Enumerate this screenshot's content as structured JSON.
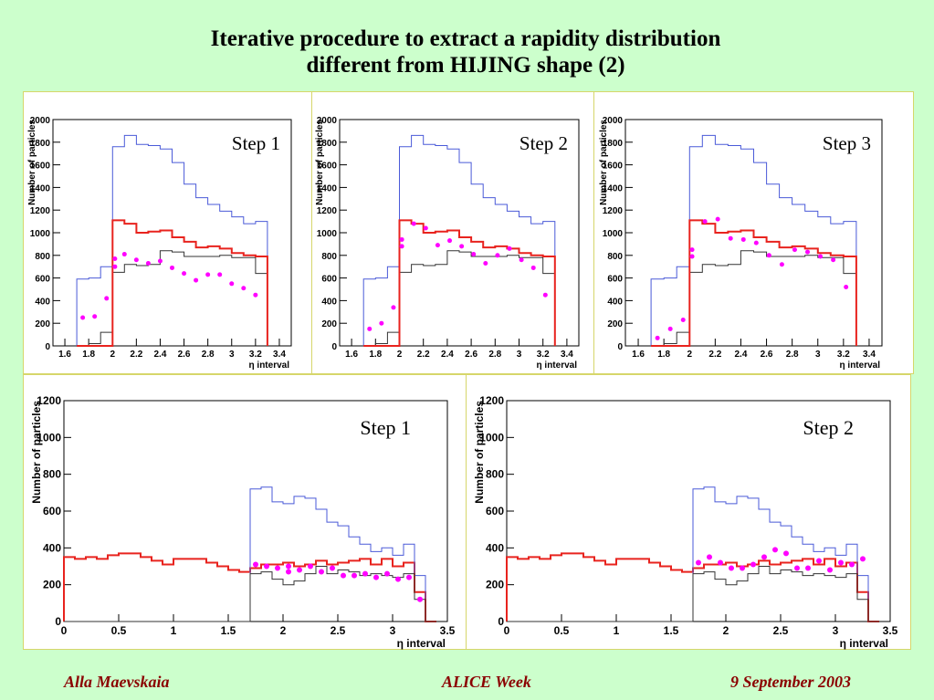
{
  "title_line1": "Iterative procedure to extract a rapidity distribution",
  "title_line2": "different from HIJING shape (2)",
  "footer": {
    "author": "Alla Maevskaia",
    "event": "ALICE Week",
    "date": "9 September 2003"
  },
  "colors": {
    "background": "#ccffcc",
    "blue": "#4a5ad8",
    "red": "#e8231e",
    "black": "#333333",
    "magenta": "#ff00ff",
    "footer": "#8b0000"
  },
  "chart_data": [
    {
      "type": "line",
      "label": "Step 1",
      "xlabel": "η interval",
      "ylabel": "Number of particles",
      "xlim": [
        1.5,
        3.5
      ],
      "ylim": [
        0,
        2000
      ],
      "xticks": [
        "1.6",
        "1.8",
        "2",
        "2.2",
        "2.4",
        "2.6",
        "2.8",
        "3",
        "3.2",
        "3.4"
      ],
      "yticks": [
        "0",
        "200",
        "400",
        "600",
        "800",
        "1000",
        "1200",
        "1400",
        "1600",
        "1800",
        "2000"
      ],
      "bin_edges": [
        1.7,
        1.8,
        1.9,
        2.0,
        2.1,
        2.2,
        2.3,
        2.4,
        2.5,
        2.6,
        2.7,
        2.8,
        2.9,
        3.0,
        3.1,
        3.2,
        3.3
      ],
      "series": [
        {
          "color": "blue",
          "values": [
            590,
            600,
            700,
            1760,
            1860,
            1780,
            1770,
            1740,
            1620,
            1430,
            1310,
            1250,
            1190,
            1140,
            1080,
            1100
          ]
        },
        {
          "color": "black",
          "values": [
            0,
            20,
            120,
            650,
            720,
            710,
            720,
            840,
            830,
            790,
            790,
            790,
            800,
            780,
            780,
            640
          ]
        },
        {
          "color": "red",
          "values": [
            0,
            0,
            0,
            1110,
            1080,
            1000,
            1010,
            1020,
            960,
            920,
            870,
            880,
            860,
            820,
            800,
            790
          ]
        }
      ],
      "points": {
        "x": [
          1.75,
          1.85,
          1.95,
          2.02,
          2.02,
          2.1,
          2.2,
          2.3,
          2.4,
          2.5,
          2.6,
          2.7,
          2.8,
          2.9,
          3.0,
          3.1,
          3.2
        ],
        "y": [
          250,
          260,
          420,
          770,
          700,
          810,
          760,
          730,
          750,
          690,
          640,
          580,
          630,
          630,
          550,
          510,
          450
        ]
      }
    },
    {
      "type": "line",
      "label": "Step 2",
      "xlabel": "η interval",
      "ylabel": "Number of particles",
      "xlim": [
        1.5,
        3.5
      ],
      "ylim": [
        0,
        2000
      ],
      "xticks": [
        "1.6",
        "1.8",
        "2",
        "2.2",
        "2.4",
        "2.6",
        "2.8",
        "3",
        "3.2",
        "3.4"
      ],
      "yticks": [
        "0",
        "200",
        "400",
        "600",
        "800",
        "1000",
        "1200",
        "1400",
        "1600",
        "1800",
        "2000"
      ],
      "bin_edges": [
        1.7,
        1.8,
        1.9,
        2.0,
        2.1,
        2.2,
        2.3,
        2.4,
        2.5,
        2.6,
        2.7,
        2.8,
        2.9,
        3.0,
        3.1,
        3.2,
        3.3
      ],
      "series": [
        {
          "color": "blue",
          "values": [
            590,
            600,
            700,
            1760,
            1860,
            1780,
            1770,
            1740,
            1620,
            1430,
            1310,
            1250,
            1190,
            1140,
            1080,
            1100
          ]
        },
        {
          "color": "black",
          "values": [
            0,
            20,
            120,
            650,
            720,
            710,
            720,
            840,
            830,
            790,
            790,
            790,
            800,
            780,
            780,
            640
          ]
        },
        {
          "color": "red",
          "values": [
            0,
            0,
            0,
            1110,
            1080,
            1000,
            1010,
            1020,
            960,
            920,
            870,
            880,
            860,
            820,
            800,
            790
          ]
        }
      ],
      "points": {
        "x": [
          1.75,
          1.85,
          1.95,
          2.02,
          2.02,
          2.12,
          2.22,
          2.32,
          2.42,
          2.52,
          2.62,
          2.72,
          2.82,
          2.92,
          3.02,
          3.12,
          3.22
        ],
        "y": [
          150,
          200,
          340,
          940,
          880,
          1080,
          1040,
          890,
          930,
          880,
          810,
          730,
          800,
          860,
          760,
          690,
          450
        ]
      }
    },
    {
      "type": "line",
      "label": "Step 3",
      "xlabel": "η interval",
      "ylabel": "Number of particles",
      "xlim": [
        1.5,
        3.5
      ],
      "ylim": [
        0,
        2000
      ],
      "xticks": [
        "1.6",
        "1.8",
        "2",
        "2.2",
        "2.4",
        "2.6",
        "2.8",
        "3",
        "3.2",
        "3.4"
      ],
      "yticks": [
        "0",
        "200",
        "400",
        "600",
        "800",
        "1000",
        "1200",
        "1400",
        "1600",
        "1800",
        "2000"
      ],
      "bin_edges": [
        1.7,
        1.8,
        1.9,
        2.0,
        2.1,
        2.2,
        2.3,
        2.4,
        2.5,
        2.6,
        2.7,
        2.8,
        2.9,
        3.0,
        3.1,
        3.2,
        3.3
      ],
      "series": [
        {
          "color": "blue",
          "values": [
            590,
            600,
            700,
            1760,
            1860,
            1780,
            1770,
            1740,
            1620,
            1430,
            1310,
            1250,
            1190,
            1140,
            1080,
            1100
          ]
        },
        {
          "color": "black",
          "values": [
            0,
            20,
            120,
            650,
            720,
            710,
            720,
            840,
            830,
            790,
            790,
            790,
            800,
            780,
            780,
            640
          ]
        },
        {
          "color": "red",
          "values": [
            0,
            0,
            0,
            1110,
            1080,
            1000,
            1010,
            1020,
            960,
            920,
            870,
            880,
            860,
            820,
            800,
            790
          ]
        }
      ],
      "points": {
        "x": [
          1.75,
          1.85,
          1.95,
          2.02,
          2.02,
          2.12,
          2.22,
          2.32,
          2.42,
          2.52,
          2.62,
          2.72,
          2.82,
          2.92,
          3.02,
          3.12,
          3.22
        ],
        "y": [
          70,
          150,
          230,
          850,
          790,
          1100,
          1120,
          950,
          940,
          910,
          800,
          720,
          850,
          830,
          790,
          760,
          520
        ]
      }
    },
    {
      "type": "line",
      "label": "Step 1",
      "xlabel": "η interval",
      "ylabel": "Number of particles",
      "xlim": [
        0,
        3.5
      ],
      "ylim": [
        0,
        1200
      ],
      "xticks": [
        "0",
        "0.5",
        "1",
        "1.5",
        "2",
        "2.5",
        "3",
        "3.5"
      ],
      "yticks": [
        "0",
        "200",
        "400",
        "600",
        "800",
        "1000",
        "1200"
      ],
      "bin_edges": [
        0,
        0.1,
        0.2,
        0.3,
        0.4,
        0.5,
        0.6,
        0.7,
        0.8,
        0.9,
        1.0,
        1.1,
        1.2,
        1.3,
        1.4,
        1.5,
        1.6,
        1.7,
        1.8,
        1.9,
        2.0,
        2.1,
        2.2,
        2.3,
        2.4,
        2.5,
        2.6,
        2.7,
        2.8,
        2.9,
        3.0,
        3.1,
        3.2,
        3.3,
        3.4
      ],
      "series": [
        {
          "color": "red",
          "values": [
            350,
            340,
            350,
            340,
            360,
            370,
            370,
            350,
            330,
            310,
            340,
            340,
            340,
            320,
            300,
            280,
            270,
            290,
            310,
            310,
            320,
            300,
            310,
            330,
            310,
            320,
            330,
            340,
            310,
            340,
            300,
            320,
            160,
            0
          ]
        },
        {
          "color": "blue",
          "values": [
            0,
            0,
            0,
            0,
            0,
            0,
            0,
            0,
            0,
            0,
            0,
            0,
            0,
            0,
            0,
            0,
            0,
            720,
            730,
            650,
            640,
            680,
            670,
            610,
            540,
            520,
            460,
            420,
            380,
            400,
            360,
            420,
            250,
            0
          ]
        },
        {
          "color": "black",
          "values": [
            0,
            0,
            0,
            0,
            0,
            0,
            0,
            0,
            0,
            0,
            0,
            0,
            0,
            0,
            0,
            0,
            0,
            260,
            270,
            230,
            200,
            220,
            260,
            300,
            260,
            280,
            270,
            250,
            260,
            250,
            240,
            260,
            120,
            0
          ]
        }
      ],
      "points": {
        "x": [
          1.75,
          1.85,
          1.95,
          2.05,
          2.05,
          2.15,
          2.25,
          2.35,
          2.45,
          2.55,
          2.65,
          2.75,
          2.85,
          2.95,
          3.05,
          3.15,
          3.25
        ],
        "y": [
          310,
          300,
          290,
          270,
          300,
          280,
          300,
          270,
          290,
          250,
          250,
          260,
          240,
          260,
          230,
          240,
          120
        ]
      }
    },
    {
      "type": "line",
      "label": "Step 2",
      "xlabel": "η interval",
      "ylabel": "Number of particles",
      "xlim": [
        0,
        3.5
      ],
      "ylim": [
        0,
        1200
      ],
      "xticks": [
        "0",
        "0.5",
        "1",
        "1.5",
        "2",
        "2.5",
        "3",
        "3.5"
      ],
      "yticks": [
        "0",
        "200",
        "400",
        "600",
        "800",
        "1000",
        "1200"
      ],
      "bin_edges": [
        0,
        0.1,
        0.2,
        0.3,
        0.4,
        0.5,
        0.6,
        0.7,
        0.8,
        0.9,
        1.0,
        1.1,
        1.2,
        1.3,
        1.4,
        1.5,
        1.6,
        1.7,
        1.8,
        1.9,
        2.0,
        2.1,
        2.2,
        2.3,
        2.4,
        2.5,
        2.6,
        2.7,
        2.8,
        2.9,
        3.0,
        3.1,
        3.2,
        3.3,
        3.4
      ],
      "series": [
        {
          "color": "red",
          "values": [
            350,
            340,
            350,
            340,
            360,
            370,
            370,
            350,
            330,
            310,
            340,
            340,
            340,
            320,
            300,
            280,
            270,
            290,
            310,
            310,
            320,
            300,
            310,
            330,
            310,
            320,
            330,
            340,
            310,
            340,
            300,
            320,
            160,
            0
          ]
        },
        {
          "color": "blue",
          "values": [
            0,
            0,
            0,
            0,
            0,
            0,
            0,
            0,
            0,
            0,
            0,
            0,
            0,
            0,
            0,
            0,
            0,
            720,
            730,
            650,
            640,
            680,
            670,
            610,
            540,
            520,
            460,
            420,
            380,
            400,
            360,
            420,
            250,
            0
          ]
        },
        {
          "color": "black",
          "values": [
            0,
            0,
            0,
            0,
            0,
            0,
            0,
            0,
            0,
            0,
            0,
            0,
            0,
            0,
            0,
            0,
            0,
            260,
            270,
            230,
            200,
            220,
            260,
            300,
            260,
            280,
            270,
            250,
            260,
            250,
            240,
            260,
            120,
            0
          ]
        }
      ],
      "points": {
        "x": [
          1.75,
          1.85,
          1.95,
          2.05,
          2.15,
          2.25,
          2.35,
          2.45,
          2.55,
          2.65,
          2.75,
          2.85,
          2.95,
          3.05,
          3.15,
          3.25
        ],
        "y": [
          320,
          350,
          320,
          290,
          290,
          310,
          350,
          390,
          370,
          290,
          290,
          330,
          280,
          320,
          310,
          340
        ]
      }
    }
  ]
}
